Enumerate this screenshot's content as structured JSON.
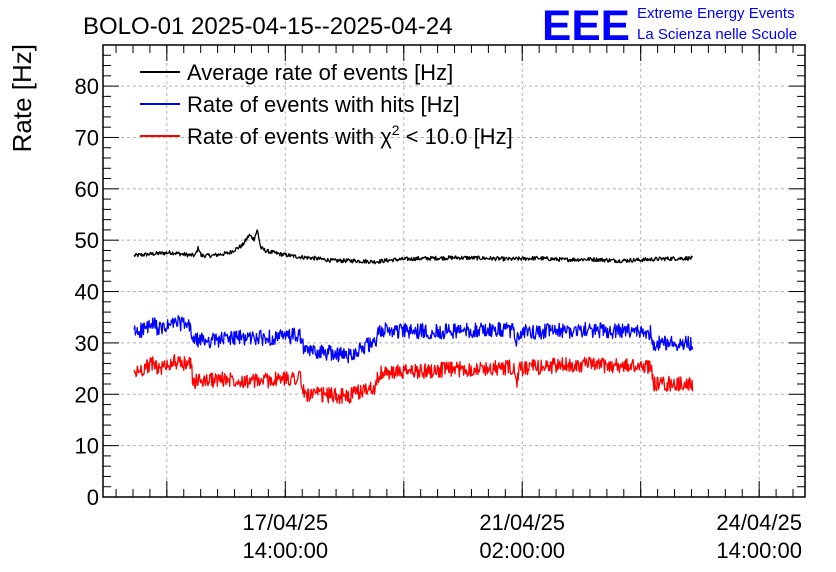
{
  "header": {
    "title": "BOLO-01 2025-04-15--2025-04-24",
    "logo_text": "EEE",
    "logo_line1": "Extreme Energy Events",
    "logo_line2": "La Scienza nelle Scuole"
  },
  "chart_data": {
    "type": "line",
    "title": "BOLO-01 2025-04-15--2025-04-24",
    "xlabel": "",
    "ylabel": "Rate [Hz]",
    "ylim": [
      0,
      88
    ],
    "y_ticks": [
      "0",
      "10",
      "20",
      "30",
      "40",
      "50",
      "60",
      "70",
      "80"
    ],
    "x_range_days": [
      14.89,
      25.26
    ],
    "x_ticks": [
      {
        "day": 17.583,
        "line1": "17/04/25",
        "line2": "14:00:00"
      },
      {
        "day": 21.083,
        "line1": "21/04/25",
        "line2": "02:00:00"
      },
      {
        "day": 24.583,
        "line1": "24/04/25",
        "line2": "14:00:00"
      }
    ],
    "grid": true,
    "legend_position": "top-left",
    "series": [
      {
        "name": "Average rate of events [Hz]",
        "color": "#000000",
        "noise": 0.4,
        "points": [
          [
            15.35,
            47.0
          ],
          [
            15.6,
            47.3
          ],
          [
            15.9,
            47.6
          ],
          [
            16.1,
            47.2
          ],
          [
            16.25,
            47.0
          ],
          [
            16.3,
            48.6
          ],
          [
            16.34,
            47.0
          ],
          [
            16.5,
            47.0
          ],
          [
            16.75,
            47.5
          ],
          [
            16.95,
            49.0
          ],
          [
            17.05,
            51.0
          ],
          [
            17.12,
            50.2
          ],
          [
            17.17,
            52.0
          ],
          [
            17.22,
            48.5
          ],
          [
            17.3,
            47.9
          ],
          [
            17.5,
            47.3
          ],
          [
            17.75,
            46.8
          ],
          [
            18.0,
            46.5
          ],
          [
            18.3,
            46.0
          ],
          [
            18.6,
            46.0
          ],
          [
            18.9,
            45.8
          ],
          [
            19.2,
            46.2
          ],
          [
            19.5,
            46.4
          ],
          [
            19.8,
            46.5
          ],
          [
            20.1,
            46.6
          ],
          [
            20.5,
            46.5
          ],
          [
            20.9,
            46.3
          ],
          [
            21.3,
            46.5
          ],
          [
            21.7,
            46.2
          ],
          [
            22.1,
            46.3
          ],
          [
            22.5,
            46.0
          ],
          [
            22.9,
            46.2
          ],
          [
            23.2,
            46.4
          ],
          [
            23.6,
            46.5
          ]
        ]
      },
      {
        "name": "Rate of events with hits [Hz]",
        "color": "#0000ff",
        "noise": 1.5,
        "points": [
          [
            15.35,
            32.0
          ],
          [
            15.55,
            33.0
          ],
          [
            15.66,
            33.5
          ],
          [
            15.72,
            32.5
          ],
          [
            15.85,
            33.2
          ],
          [
            15.95,
            34.0
          ],
          [
            16.05,
            33.8
          ],
          [
            16.18,
            33.0
          ],
          [
            16.22,
            30.5
          ],
          [
            16.5,
            30.5
          ],
          [
            16.8,
            31.0
          ],
          [
            17.1,
            31.0
          ],
          [
            17.4,
            31.0
          ],
          [
            17.6,
            31.2
          ],
          [
            17.8,
            31.5
          ],
          [
            17.86,
            28.5
          ],
          [
            18.3,
            28.0
          ],
          [
            18.5,
            27.5
          ],
          [
            18.78,
            29.5
          ],
          [
            18.9,
            29.6
          ],
          [
            18.98,
            32.5
          ],
          [
            19.5,
            32.2
          ],
          [
            20.0,
            32.3
          ],
          [
            20.5,
            32.5
          ],
          [
            20.95,
            32.5
          ],
          [
            21.0,
            30.0
          ],
          [
            21.05,
            32.0
          ],
          [
            21.5,
            32.3
          ],
          [
            22.0,
            32.5
          ],
          [
            22.5,
            32.3
          ],
          [
            22.98,
            32.0
          ],
          [
            23.02,
            30.0
          ],
          [
            23.6,
            30.0
          ]
        ]
      },
      {
        "name": "Rate of events with χ² < 10.0 [Hz]",
        "color": "#ff0000",
        "noise": 1.5,
        "points": [
          [
            15.35,
            24.0
          ],
          [
            15.55,
            25.5
          ],
          [
            15.66,
            26.0
          ],
          [
            15.72,
            24.8
          ],
          [
            15.85,
            25.8
          ],
          [
            15.95,
            26.5
          ],
          [
            16.05,
            25.6
          ],
          [
            16.18,
            26.5
          ],
          [
            16.22,
            22.5
          ],
          [
            16.5,
            22.8
          ],
          [
            16.8,
            23.0
          ],
          [
            17.1,
            22.5
          ],
          [
            17.4,
            22.8
          ],
          [
            17.6,
            23.0
          ],
          [
            17.8,
            23.5
          ],
          [
            17.86,
            20.0
          ],
          [
            18.3,
            19.8
          ],
          [
            18.5,
            19.5
          ],
          [
            18.78,
            21.0
          ],
          [
            18.9,
            21.5
          ],
          [
            18.98,
            24.0
          ],
          [
            19.5,
            24.5
          ],
          [
            20.0,
            24.8
          ],
          [
            20.5,
            25.0
          ],
          [
            20.95,
            25.2
          ],
          [
            21.0,
            22.0
          ],
          [
            21.05,
            25.0
          ],
          [
            21.5,
            25.5
          ],
          [
            22.0,
            25.8
          ],
          [
            22.5,
            25.5
          ],
          [
            22.98,
            25.5
          ],
          [
            23.02,
            22.0
          ],
          [
            23.6,
            22.0
          ]
        ]
      }
    ]
  }
}
